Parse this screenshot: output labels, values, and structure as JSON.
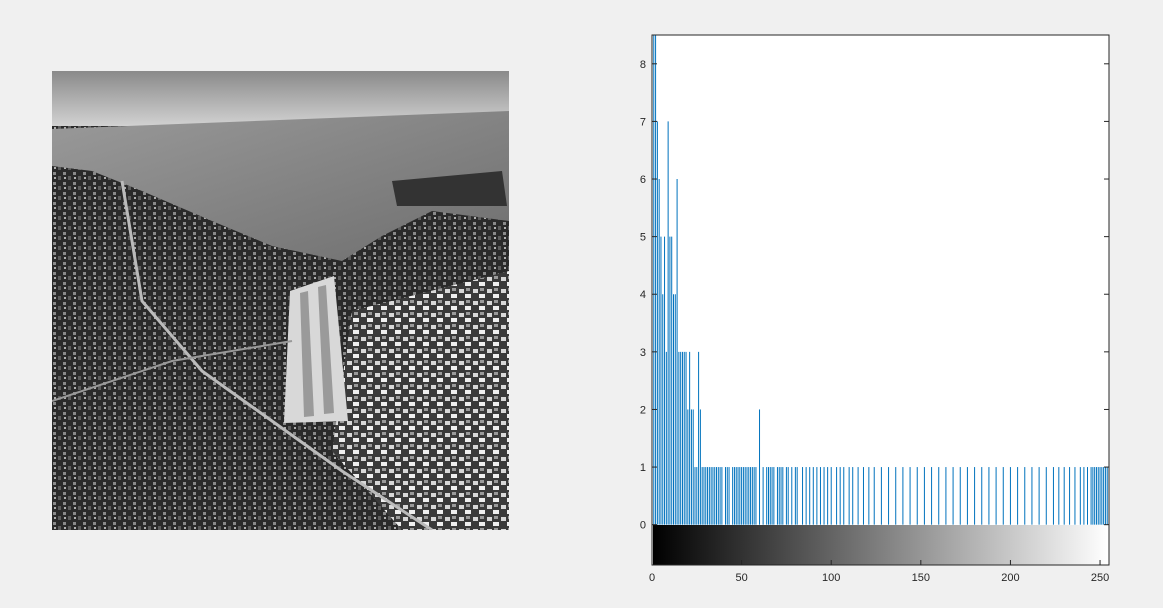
{
  "figure": {
    "image_panel": {
      "description_icon": "aerial-photo-grayscale"
    }
  },
  "chart_data": {
    "type": "bar",
    "title": "",
    "xlabel": "",
    "ylabel": "",
    "xlim": [
      0,
      255
    ],
    "ylim": [
      -0.7,
      8.5
    ],
    "colorbar_range": [
      0,
      255
    ],
    "bar_color": "#0072bd",
    "x_ticks": [
      "0",
      "50",
      "100",
      "150",
      "200",
      "250"
    ],
    "x_tick_values": [
      0,
      50,
      100,
      150,
      200,
      250
    ],
    "y_ticks": [
      "0",
      "1",
      "2",
      "3",
      "4",
      "5",
      "6",
      "7",
      "8"
    ],
    "y_tick_values": [
      0,
      1,
      2,
      3,
      4,
      5,
      6,
      7,
      8
    ],
    "bars": [
      [
        1,
        9
      ],
      [
        2,
        9
      ],
      [
        3,
        7
      ],
      [
        4,
        6
      ],
      [
        5,
        5
      ],
      [
        6,
        4
      ],
      [
        7,
        5
      ],
      [
        8,
        3
      ],
      [
        9,
        7
      ],
      [
        10,
        5
      ],
      [
        11,
        5
      ],
      [
        12,
        4
      ],
      [
        13,
        4
      ],
      [
        14,
        6
      ],
      [
        15,
        3
      ],
      [
        16,
        3
      ],
      [
        17,
        3
      ],
      [
        18,
        3
      ],
      [
        19,
        3
      ],
      [
        20,
        2
      ],
      [
        21,
        3
      ],
      [
        22,
        2
      ],
      [
        23,
        2
      ],
      [
        24,
        1
      ],
      [
        25,
        1
      ],
      [
        26,
        3
      ],
      [
        27,
        2
      ],
      [
        28,
        1
      ],
      [
        29,
        1
      ],
      [
        30,
        1
      ],
      [
        31,
        1
      ],
      [
        32,
        1
      ],
      [
        33,
        1
      ],
      [
        34,
        1
      ],
      [
        35,
        1
      ],
      [
        36,
        1
      ],
      [
        37,
        1
      ],
      [
        38,
        1
      ],
      [
        39,
        1
      ],
      [
        41,
        1
      ],
      [
        42,
        1
      ],
      [
        43,
        1
      ],
      [
        45,
        1
      ],
      [
        46,
        1
      ],
      [
        47,
        1
      ],
      [
        48,
        1
      ],
      [
        49,
        1
      ],
      [
        50,
        1
      ],
      [
        51,
        1
      ],
      [
        52,
        1
      ],
      [
        53,
        1
      ],
      [
        54,
        1
      ],
      [
        55,
        1
      ],
      [
        56,
        1
      ],
      [
        57,
        1
      ],
      [
        58,
        1
      ],
      [
        60,
        2
      ],
      [
        62,
        1
      ],
      [
        64,
        1
      ],
      [
        65,
        1
      ],
      [
        66,
        1
      ],
      [
        67,
        1
      ],
      [
        68,
        1
      ],
      [
        70,
        1
      ],
      [
        71,
        1
      ],
      [
        72,
        1
      ],
      [
        73,
        1
      ],
      [
        75,
        1
      ],
      [
        76,
        1
      ],
      [
        78,
        1
      ],
      [
        80,
        1
      ],
      [
        81,
        1
      ],
      [
        84,
        1
      ],
      [
        86,
        1
      ],
      [
        88,
        1
      ],
      [
        90,
        1
      ],
      [
        92,
        1
      ],
      [
        94,
        1
      ],
      [
        96,
        1
      ],
      [
        98,
        1
      ],
      [
        100,
        1
      ],
      [
        103,
        1
      ],
      [
        105,
        1
      ],
      [
        107,
        1
      ],
      [
        110,
        1
      ],
      [
        112,
        1
      ],
      [
        115,
        1
      ],
      [
        118,
        1
      ],
      [
        121,
        1
      ],
      [
        124,
        1
      ],
      [
        128,
        1
      ],
      [
        132,
        1
      ],
      [
        136,
        1
      ],
      [
        140,
        1
      ],
      [
        144,
        1
      ],
      [
        148,
        1
      ],
      [
        152,
        1
      ],
      [
        156,
        1
      ],
      [
        160,
        1
      ],
      [
        164,
        1
      ],
      [
        168,
        1
      ],
      [
        172,
        1
      ],
      [
        176,
        1
      ],
      [
        180,
        1
      ],
      [
        184,
        1
      ],
      [
        188,
        1
      ],
      [
        192,
        1
      ],
      [
        196,
        1
      ],
      [
        200,
        1
      ],
      [
        204,
        1
      ],
      [
        208,
        1
      ],
      [
        212,
        1
      ],
      [
        216,
        1
      ],
      [
        220,
        1
      ],
      [
        224,
        1
      ],
      [
        227,
        1
      ],
      [
        230,
        1
      ],
      [
        233,
        1
      ],
      [
        236,
        1
      ],
      [
        239,
        1
      ],
      [
        241,
        1
      ],
      [
        243,
        1
      ],
      [
        245,
        1
      ],
      [
        246,
        1
      ],
      [
        247,
        1
      ],
      [
        248,
        1
      ],
      [
        249,
        1
      ],
      [
        250,
        1
      ],
      [
        251,
        1
      ],
      [
        252,
        1
      ],
      [
        253,
        1
      ],
      [
        254,
        1
      ],
      [
        255,
        2
      ]
    ]
  }
}
